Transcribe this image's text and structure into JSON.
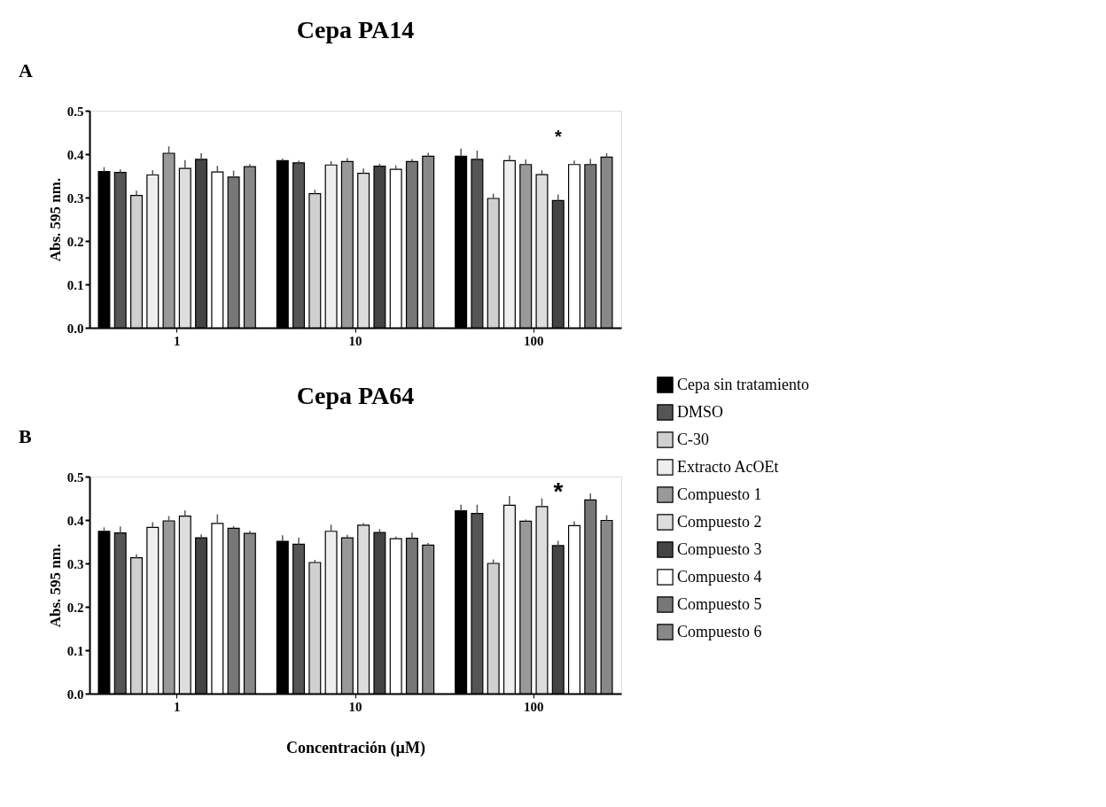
{
  "chart_data": [
    {
      "type": "bar",
      "title": "Cepa PA14",
      "ylabel": "Abs. 595 nm.",
      "categories": [
        "1",
        "10",
        "100"
      ],
      "ylim": [
        0,
        0.5
      ],
      "yticks": [
        {
          "value": 0,
          "label": "0.0"
        },
        {
          "value": 0.1,
          "label": "0.1"
        },
        {
          "value": 0.2,
          "label": "0.2"
        },
        {
          "value": 0.3,
          "label": "0.3"
        },
        {
          "value": 0.4,
          "label": "0.4"
        },
        {
          "value": 0.5,
          "label": "0.5"
        }
      ],
      "grid": false,
      "legend": "right",
      "annotations": [
        "A",
        "*"
      ],
      "series": [
        {
          "name": "Cepa sin tratamiento",
          "color": "#000000",
          "values": [
            0.36,
            0.385,
            0.395
          ],
          "errors": [
            [
              0.36,
              0.37
            ],
            [
              0.385,
              0.39
            ],
            [
              0.395,
              0.413
            ]
          ]
        },
        {
          "name": "DMSO",
          "color": "#555555",
          "values": [
            0.358,
            0.38,
            0.388
          ],
          "errors": [
            [
              0.358,
              0.365
            ],
            [
              0.38,
              0.385
            ],
            [
              0.388,
              0.408
            ]
          ]
        },
        {
          "name": "C-30",
          "color": "#d0d0d0",
          "values": [
            0.305,
            0.309,
            0.298
          ],
          "errors": [
            [
              0.305,
              0.316
            ],
            [
              0.309,
              0.318
            ],
            [
              0.298,
              0.309
            ]
          ]
        },
        {
          "name": "Extracto AcOEt",
          "color": "#eeeeee",
          "values": [
            0.352,
            0.375,
            0.385
          ],
          "errors": [
            [
              0.352,
              0.363
            ],
            [
              0.375,
              0.384
            ],
            [
              0.385,
              0.397
            ]
          ]
        },
        {
          "name": "Compuesto 1",
          "color": "#999999",
          "values": [
            0.402,
            0.383,
            0.376
          ],
          "errors": [
            [
              0.402,
              0.418
            ],
            [
              0.383,
              0.391
            ],
            [
              0.376,
              0.388
            ]
          ]
        },
        {
          "name": "Compuesto 2",
          "color": "#dddddd",
          "values": [
            0.367,
            0.356,
            0.353
          ],
          "errors": [
            [
              0.367,
              0.386
            ],
            [
              0.356,
              0.367
            ],
            [
              0.353,
              0.363
            ]
          ]
        },
        {
          "name": "Compuesto 3",
          "color": "#444444",
          "values": [
            0.388,
            0.372,
            0.293
          ],
          "errors": [
            [
              0.388,
              0.402
            ],
            [
              0.372,
              0.378
            ],
            [
              0.293,
              0.307
            ]
          ]
        },
        {
          "name": "Compuesto 4",
          "color": "#ffffff",
          "values": [
            0.359,
            0.365,
            0.376
          ],
          "errors": [
            [
              0.359,
              0.373
            ],
            [
              0.365,
              0.374
            ],
            [
              0.376,
              0.385
            ]
          ]
        },
        {
          "name": "Compuesto 5",
          "color": "#777777",
          "values": [
            0.347,
            0.383,
            0.376
          ],
          "errors": [
            [
              0.347,
              0.362
            ],
            [
              0.383,
              0.389
            ],
            [
              0.376,
              0.389
            ]
          ]
        },
        {
          "name": "Compuesto 6",
          "color": "#888888",
          "values": [
            0.371,
            0.395,
            0.393
          ],
          "errors": [
            [
              0.371,
              0.377
            ],
            [
              0.395,
              0.403
            ],
            [
              0.393,
              0.402
            ]
          ]
        }
      ]
    },
    {
      "type": "bar",
      "title": "Cepa PA64",
      "ylabel": "Abs. 595 nm.",
      "xlabel": "Concentración (µM)",
      "categories": [
        "1",
        "10",
        "100"
      ],
      "ylim": [
        0,
        0.5
      ],
      "yticks": [
        {
          "value": 0,
          "label": "0.0"
        },
        {
          "value": 0.1,
          "label": "0.1"
        },
        {
          "value": 0.2,
          "label": "0.2"
        },
        {
          "value": 0.3,
          "label": "0.3"
        },
        {
          "value": 0.4,
          "label": "0.4"
        },
        {
          "value": 0.5,
          "label": "0.5"
        }
      ],
      "grid": false,
      "legend": "right",
      "annotations": [
        "B",
        "*"
      ],
      "series": [
        {
          "name": "Cepa sin tratamiento",
          "color": "#000000",
          "values": [
            0.374,
            0.351,
            0.421
          ],
          "errors": [
            [
              0.374,
              0.383
            ],
            [
              0.351,
              0.365
            ],
            [
              0.421,
              0.435
            ]
          ]
        },
        {
          "name": "DMSO",
          "color": "#555555",
          "values": [
            0.37,
            0.344,
            0.415
          ],
          "errors": [
            [
              0.37,
              0.385
            ],
            [
              0.344,
              0.359
            ],
            [
              0.415,
              0.435
            ]
          ]
        },
        {
          "name": "C-30",
          "color": "#d0d0d0",
          "values": [
            0.313,
            0.302,
            0.3
          ],
          "errors": [
            [
              0.313,
              0.321
            ],
            [
              0.302,
              0.308
            ],
            [
              0.3,
              0.309
            ]
          ]
        },
        {
          "name": "Extracto AcOEt",
          "color": "#eeeeee",
          "values": [
            0.383,
            0.374,
            0.434
          ],
          "errors": [
            [
              0.383,
              0.395
            ],
            [
              0.374,
              0.389
            ],
            [
              0.434,
              0.455
            ]
          ]
        },
        {
          "name": "Compuesto 1",
          "color": "#999999",
          "values": [
            0.398,
            0.359,
            0.397
          ],
          "errors": [
            [
              0.398,
              0.409
            ],
            [
              0.359,
              0.366
            ],
            [
              0.397,
              0.401
            ]
          ]
        },
        {
          "name": "Compuesto 2",
          "color": "#dddddd",
          "values": [
            0.409,
            0.388,
            0.431
          ],
          "errors": [
            [
              0.409,
              0.422
            ],
            [
              0.388,
              0.393
            ],
            [
              0.431,
              0.45
            ]
          ]
        },
        {
          "name": "Compuesto 3",
          "color": "#444444",
          "values": [
            0.359,
            0.371,
            0.341
          ],
          "errors": [
            [
              0.359,
              0.367
            ],
            [
              0.371,
              0.379
            ],
            [
              0.341,
              0.352
            ]
          ]
        },
        {
          "name": "Compuesto 4",
          "color": "#ffffff",
          "values": [
            0.392,
            0.357,
            0.387
          ],
          "errors": [
            [
              0.392,
              0.413
            ],
            [
              0.357,
              0.362
            ],
            [
              0.387,
              0.397
            ]
          ]
        },
        {
          "name": "Compuesto 5",
          "color": "#777777",
          "values": [
            0.381,
            0.358,
            0.446
          ],
          "errors": [
            [
              0.381,
              0.386
            ],
            [
              0.358,
              0.371
            ],
            [
              0.446,
              0.461
            ]
          ]
        },
        {
          "name": "Compuesto 6",
          "color": "#888888",
          "values": [
            0.369,
            0.342,
            0.399
          ],
          "errors": [
            [
              0.369,
              0.375
            ],
            [
              0.342,
              0.347
            ],
            [
              0.399,
              0.411
            ]
          ]
        }
      ]
    }
  ]
}
